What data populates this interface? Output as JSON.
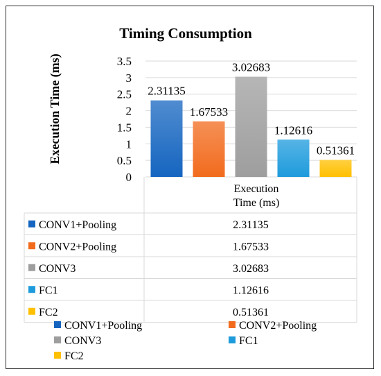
{
  "chart_data": {
    "type": "bar",
    "title": "Timing Consumption",
    "ylabel": "Execution Time (ms)",
    "ylim": [
      0,
      3.5
    ],
    "y_ticks": [
      0,
      0.5,
      1,
      1.5,
      2,
      2.5,
      3,
      3.5
    ],
    "grid": true,
    "series_header": "Execution Time (ms)",
    "categories": [
      "CONV1+Pooling",
      "CONV2+Pooling",
      "CONV3",
      "FC1",
      "FC2"
    ],
    "values": [
      2.31135,
      1.67533,
      3.02683,
      1.12616,
      0.51361
    ],
    "value_labels": [
      "2.31135",
      "1.67533",
      "3.02683",
      "1.12616",
      "0.51361"
    ],
    "colors": [
      "#1565c0",
      "#f26b1d",
      "#9e9e9e",
      "#1e9bdc",
      "#ffc000"
    ],
    "legend_position": "bottom"
  }
}
